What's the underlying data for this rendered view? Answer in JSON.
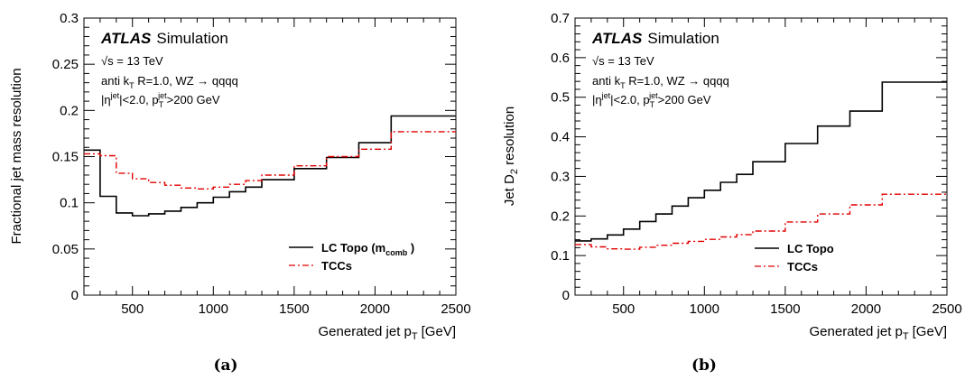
{
  "chart_data": [
    {
      "id": "a",
      "type": "line",
      "panel_label": "(a)",
      "xlabel": "Generated jet p",
      "xlabel_sub": "T",
      "xlabel_unit": "[GeV]",
      "ylabel": "Fractional jet mass resolution",
      "xlim": [
        200,
        2500
      ],
      "ylim": [
        0,
        0.3
      ],
      "xticks": [
        500,
        1000,
        1500,
        2000,
        2500
      ],
      "yticks": [
        0,
        0.05,
        0.1,
        0.15,
        0.2,
        0.25,
        0.3
      ],
      "ytick_labels": [
        "0",
        "0.05",
        "0.1",
        "0.15",
        "0.2",
        "0.25",
        "0.3"
      ],
      "atlas": "ATLAS",
      "simulation": "Simulation",
      "annotations": {
        "sqrts": "√s = 13 TeV",
        "algo": "anti k",
        "algo_sub": "T",
        "algo_rest": " R=1.0, WZ → qqqq",
        "eta": "|η",
        "eta_sup": "jet",
        "eta_rest": "|<2.0, p",
        "pt_sub": "T",
        "pt_sup": "jet",
        "pt_rest": ">200 GeV"
      },
      "legend_position": "bottom-right",
      "series": [
        {
          "name": "LC Topo (m",
          "name_sub": "comb",
          "name_end": " )",
          "color": "#000000",
          "style": "solid",
          "edges": [
            200,
            300,
            400,
            500,
            600,
            700,
            800,
            900,
            1000,
            1100,
            1200,
            1300,
            1500,
            1700,
            1900,
            2100,
            2500
          ],
          "values": [
            0.157,
            0.107,
            0.089,
            0.086,
            0.088,
            0.091,
            0.095,
            0.1,
            0.106,
            0.112,
            0.117,
            0.125,
            0.137,
            0.149,
            0.165,
            0.194
          ]
        },
        {
          "name": "TCCs",
          "color": "#e00000",
          "style": "dashdot",
          "edges": [
            200,
            300,
            400,
            500,
            600,
            700,
            800,
            900,
            1000,
            1100,
            1200,
            1300,
            1500,
            1700,
            1900,
            2100,
            2500
          ],
          "values": [
            0.153,
            0.151,
            0.132,
            0.126,
            0.122,
            0.119,
            0.116,
            0.115,
            0.117,
            0.12,
            0.124,
            0.13,
            0.14,
            0.15,
            0.158,
            0.177
          ]
        }
      ]
    },
    {
      "id": "b",
      "type": "line",
      "panel_label": "(b)",
      "xlabel": "Generated jet p",
      "xlabel_sub": "T",
      "xlabel_unit": "[GeV]",
      "ylabel": "Jet D",
      "ylabel_sub": "2",
      "ylabel_rest": " resolution",
      "xlim": [
        200,
        2500
      ],
      "ylim": [
        0,
        0.7
      ],
      "xticks": [
        500,
        1000,
        1500,
        2000,
        2500
      ],
      "yticks": [
        0,
        0.1,
        0.2,
        0.3,
        0.4,
        0.5,
        0.6,
        0.7
      ],
      "ytick_labels": [
        "0",
        "0.1",
        "0.2",
        "0.3",
        "0.4",
        "0.5",
        "0.6",
        "0.7"
      ],
      "atlas": "ATLAS",
      "simulation": "Simulation",
      "annotations": {
        "sqrts": "√s = 13 TeV",
        "algo": "anti k",
        "algo_sub": "T",
        "algo_rest": " R=1.0, WZ → qqqq",
        "eta": "|η",
        "eta_sup": "jet",
        "eta_rest": "|<2.0, p",
        "pt_sub": "T",
        "pt_sup": "jet",
        "pt_rest": ">200 GeV"
      },
      "legend_position": "bottom-right",
      "series": [
        {
          "name": "LC Topo",
          "color": "#000000",
          "style": "solid",
          "edges": [
            200,
            300,
            400,
            500,
            600,
            700,
            800,
            900,
            1000,
            1100,
            1200,
            1300,
            1500,
            1700,
            1900,
            2100,
            2500
          ],
          "values": [
            0.137,
            0.142,
            0.152,
            0.167,
            0.186,
            0.205,
            0.225,
            0.246,
            0.265,
            0.285,
            0.305,
            0.337,
            0.383,
            0.427,
            0.465,
            0.538
          ]
        },
        {
          "name": "TCCs",
          "color": "#e00000",
          "style": "dashdot",
          "edges": [
            200,
            300,
            400,
            500,
            600,
            700,
            800,
            900,
            1000,
            1100,
            1200,
            1300,
            1500,
            1700,
            1900,
            2100,
            2500
          ],
          "values": [
            0.128,
            0.122,
            0.117,
            0.116,
            0.121,
            0.126,
            0.131,
            0.136,
            0.141,
            0.147,
            0.153,
            0.162,
            0.185,
            0.205,
            0.228,
            0.255
          ]
        }
      ]
    }
  ]
}
